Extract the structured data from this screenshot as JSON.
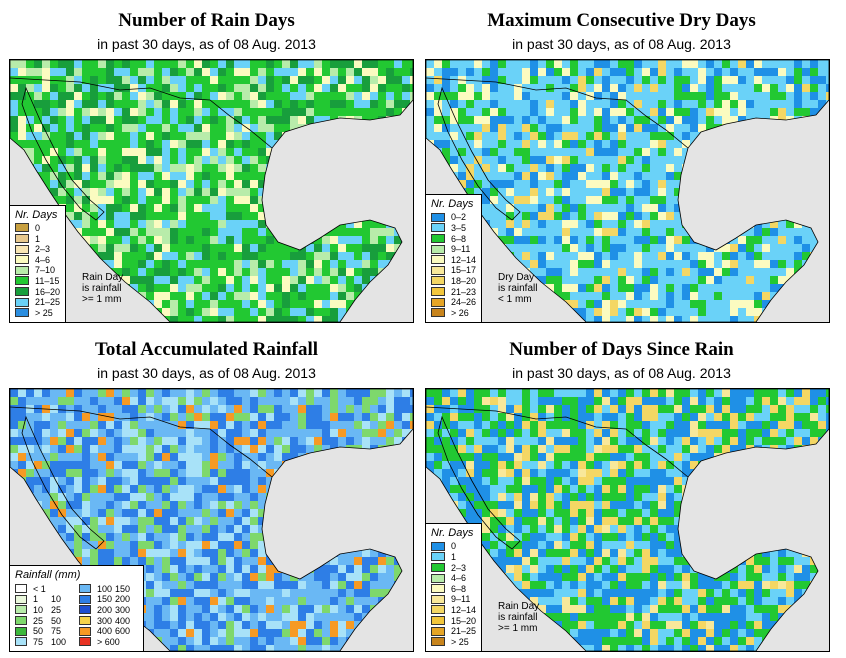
{
  "panels": [
    {
      "title": "Number of Rain Days",
      "subtitle": "in past 30 days, as of  08 Aug. 2013",
      "legend_title": "Nr. Days",
      "legend": [
        {
          "label": "0",
          "color": "#c8a040"
        },
        {
          "label": "1",
          "color": "#e8c98e"
        },
        {
          "label": "2–3",
          "color": "#f8e6b4"
        },
        {
          "label": "4–6",
          "color": "#fbfbc0"
        },
        {
          "label": "7–10",
          "color": "#b8ecaa"
        },
        {
          "label": "11–15",
          "color": "#22c832"
        },
        {
          "label": "16–20",
          "color": "#189e3c"
        },
        {
          "label": "21–25",
          "color": "#6ad2f8"
        },
        {
          "label": "> 25",
          "color": "#2b8ee0"
        }
      ],
      "note": [
        "Rain Day",
        "is rainfall",
        ">= 1 mm"
      ]
    },
    {
      "title": "Maximum Consecutive Dry Days",
      "subtitle": "in past 30 days, as of  08 Aug. 2013",
      "legend_title": "Nr. Days",
      "legend": [
        {
          "label": "0–2",
          "color": "#1f90e6"
        },
        {
          "label": "3–5",
          "color": "#6ad2f8"
        },
        {
          "label": "6–8",
          "color": "#22c832"
        },
        {
          "label": "9–11",
          "color": "#b8ecaa"
        },
        {
          "label": "12–14",
          "color": "#fbfbc0"
        },
        {
          "label": "15–17",
          "color": "#f8e89a"
        },
        {
          "label": "18–20",
          "color": "#f4d764"
        },
        {
          "label": "21–23",
          "color": "#f2c63c"
        },
        {
          "label": "24–26",
          "color": "#e6a526"
        },
        {
          "label": "> 26",
          "color": "#c8841c"
        }
      ],
      "note": [
        "Dry Day",
        "is rainfall",
        "< 1 mm"
      ]
    },
    {
      "title": "Total Accumulated Rainfall",
      "subtitle": "in past 30 days, as of  08 Aug. 2013",
      "legend_title": "Rainfall (mm)",
      "legend_left": [
        {
          "from": "< 1",
          "to": "",
          "color": "#ffffff"
        },
        {
          "from": "1",
          "to": "10",
          "color": "#eaf8dc"
        },
        {
          "from": "10",
          "to": "25",
          "color": "#b8ecaa"
        },
        {
          "from": "25",
          "to": "50",
          "color": "#7ed86c"
        },
        {
          "from": "50",
          "to": "75",
          "color": "#3cb83c"
        },
        {
          "from": "75",
          "to": "100",
          "color": "#a8e2f8"
        }
      ],
      "legend_right": [
        {
          "from": "100",
          "to": "150",
          "color": "#6ab8f4"
        },
        {
          "from": "150",
          "to": "200",
          "color": "#2e7ee6"
        },
        {
          "from": "200",
          "to": "300",
          "color": "#1e4fd2"
        },
        {
          "from": "300",
          "to": "400",
          "color": "#f6d44a"
        },
        {
          "from": "400",
          "to": "600",
          "color": "#f69a24"
        },
        {
          "from": "> 600",
          "to": "",
          "color": "#e83222"
        }
      ]
    },
    {
      "title": "Number of Days Since Rain",
      "subtitle": "in past 30 days, as of  08 Aug. 2013",
      "legend_title": "Nr. Days",
      "legend": [
        {
          "label": "0",
          "color": "#1f90e6"
        },
        {
          "label": "1",
          "color": "#6ad2f8"
        },
        {
          "label": "2–3",
          "color": "#22c832"
        },
        {
          "label": "4–6",
          "color": "#b8ecaa"
        },
        {
          "label": "6–8",
          "color": "#fbfbc0"
        },
        {
          "label": "9–11",
          "color": "#f8e89a"
        },
        {
          "label": "12–14",
          "color": "#f4d764"
        },
        {
          "label": "15–20",
          "color": "#f2c63c"
        },
        {
          "label": "21–25",
          "color": "#e6a526"
        },
        {
          "label": "> 25",
          "color": "#c8841c"
        }
      ],
      "note": [
        "Rain Day",
        "is rainfall",
        ">= 1 mm"
      ]
    }
  ]
}
